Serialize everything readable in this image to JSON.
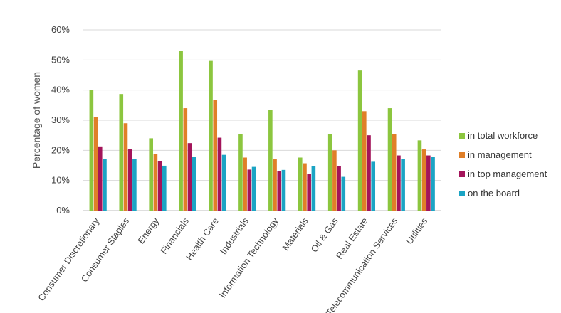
{
  "chart_data": {
    "type": "bar",
    "ylabel": "Percentage of women",
    "ylim": [
      0,
      60
    ],
    "yticks": [
      0,
      10,
      20,
      30,
      40,
      50,
      60
    ],
    "ytick_labels": [
      "0%",
      "10%",
      "20%",
      "30%",
      "40%",
      "50%",
      "60%"
    ],
    "grid": true,
    "legend_position": "right",
    "categories": [
      "Consumer Discretionary",
      "Consumer Staples",
      "Energy",
      "Financials",
      "Health Care",
      "Industrials",
      "Information Technology",
      "Materials",
      "Oil & Gas",
      "Real Estate",
      "Telecommunication Services",
      "Utilities"
    ],
    "series": [
      {
        "name": "in total workforce",
        "color": "#8cc63f",
        "values": [
          40,
          38.7,
          24,
          53,
          49.7,
          25.4,
          33.5,
          17.6,
          25.3,
          46.5,
          34,
          23.3
        ]
      },
      {
        "name": "in management",
        "color": "#e07f28",
        "values": [
          31.1,
          29,
          18.7,
          34,
          36.7,
          17.6,
          17,
          15.7,
          20,
          33,
          25.3,
          20.3
        ]
      },
      {
        "name": "in top management",
        "color": "#a3145a",
        "values": [
          21.3,
          20.5,
          16.3,
          22.4,
          24.2,
          13.6,
          13.2,
          12.2,
          14.7,
          25,
          18.3,
          18.3
        ]
      },
      {
        "name": "on the board",
        "color": "#1ba4c4",
        "values": [
          17.2,
          17.2,
          14.9,
          17.8,
          18.5,
          14.5,
          13.5,
          14.7,
          11.2,
          16.2,
          17.2,
          17.9
        ]
      }
    ]
  }
}
